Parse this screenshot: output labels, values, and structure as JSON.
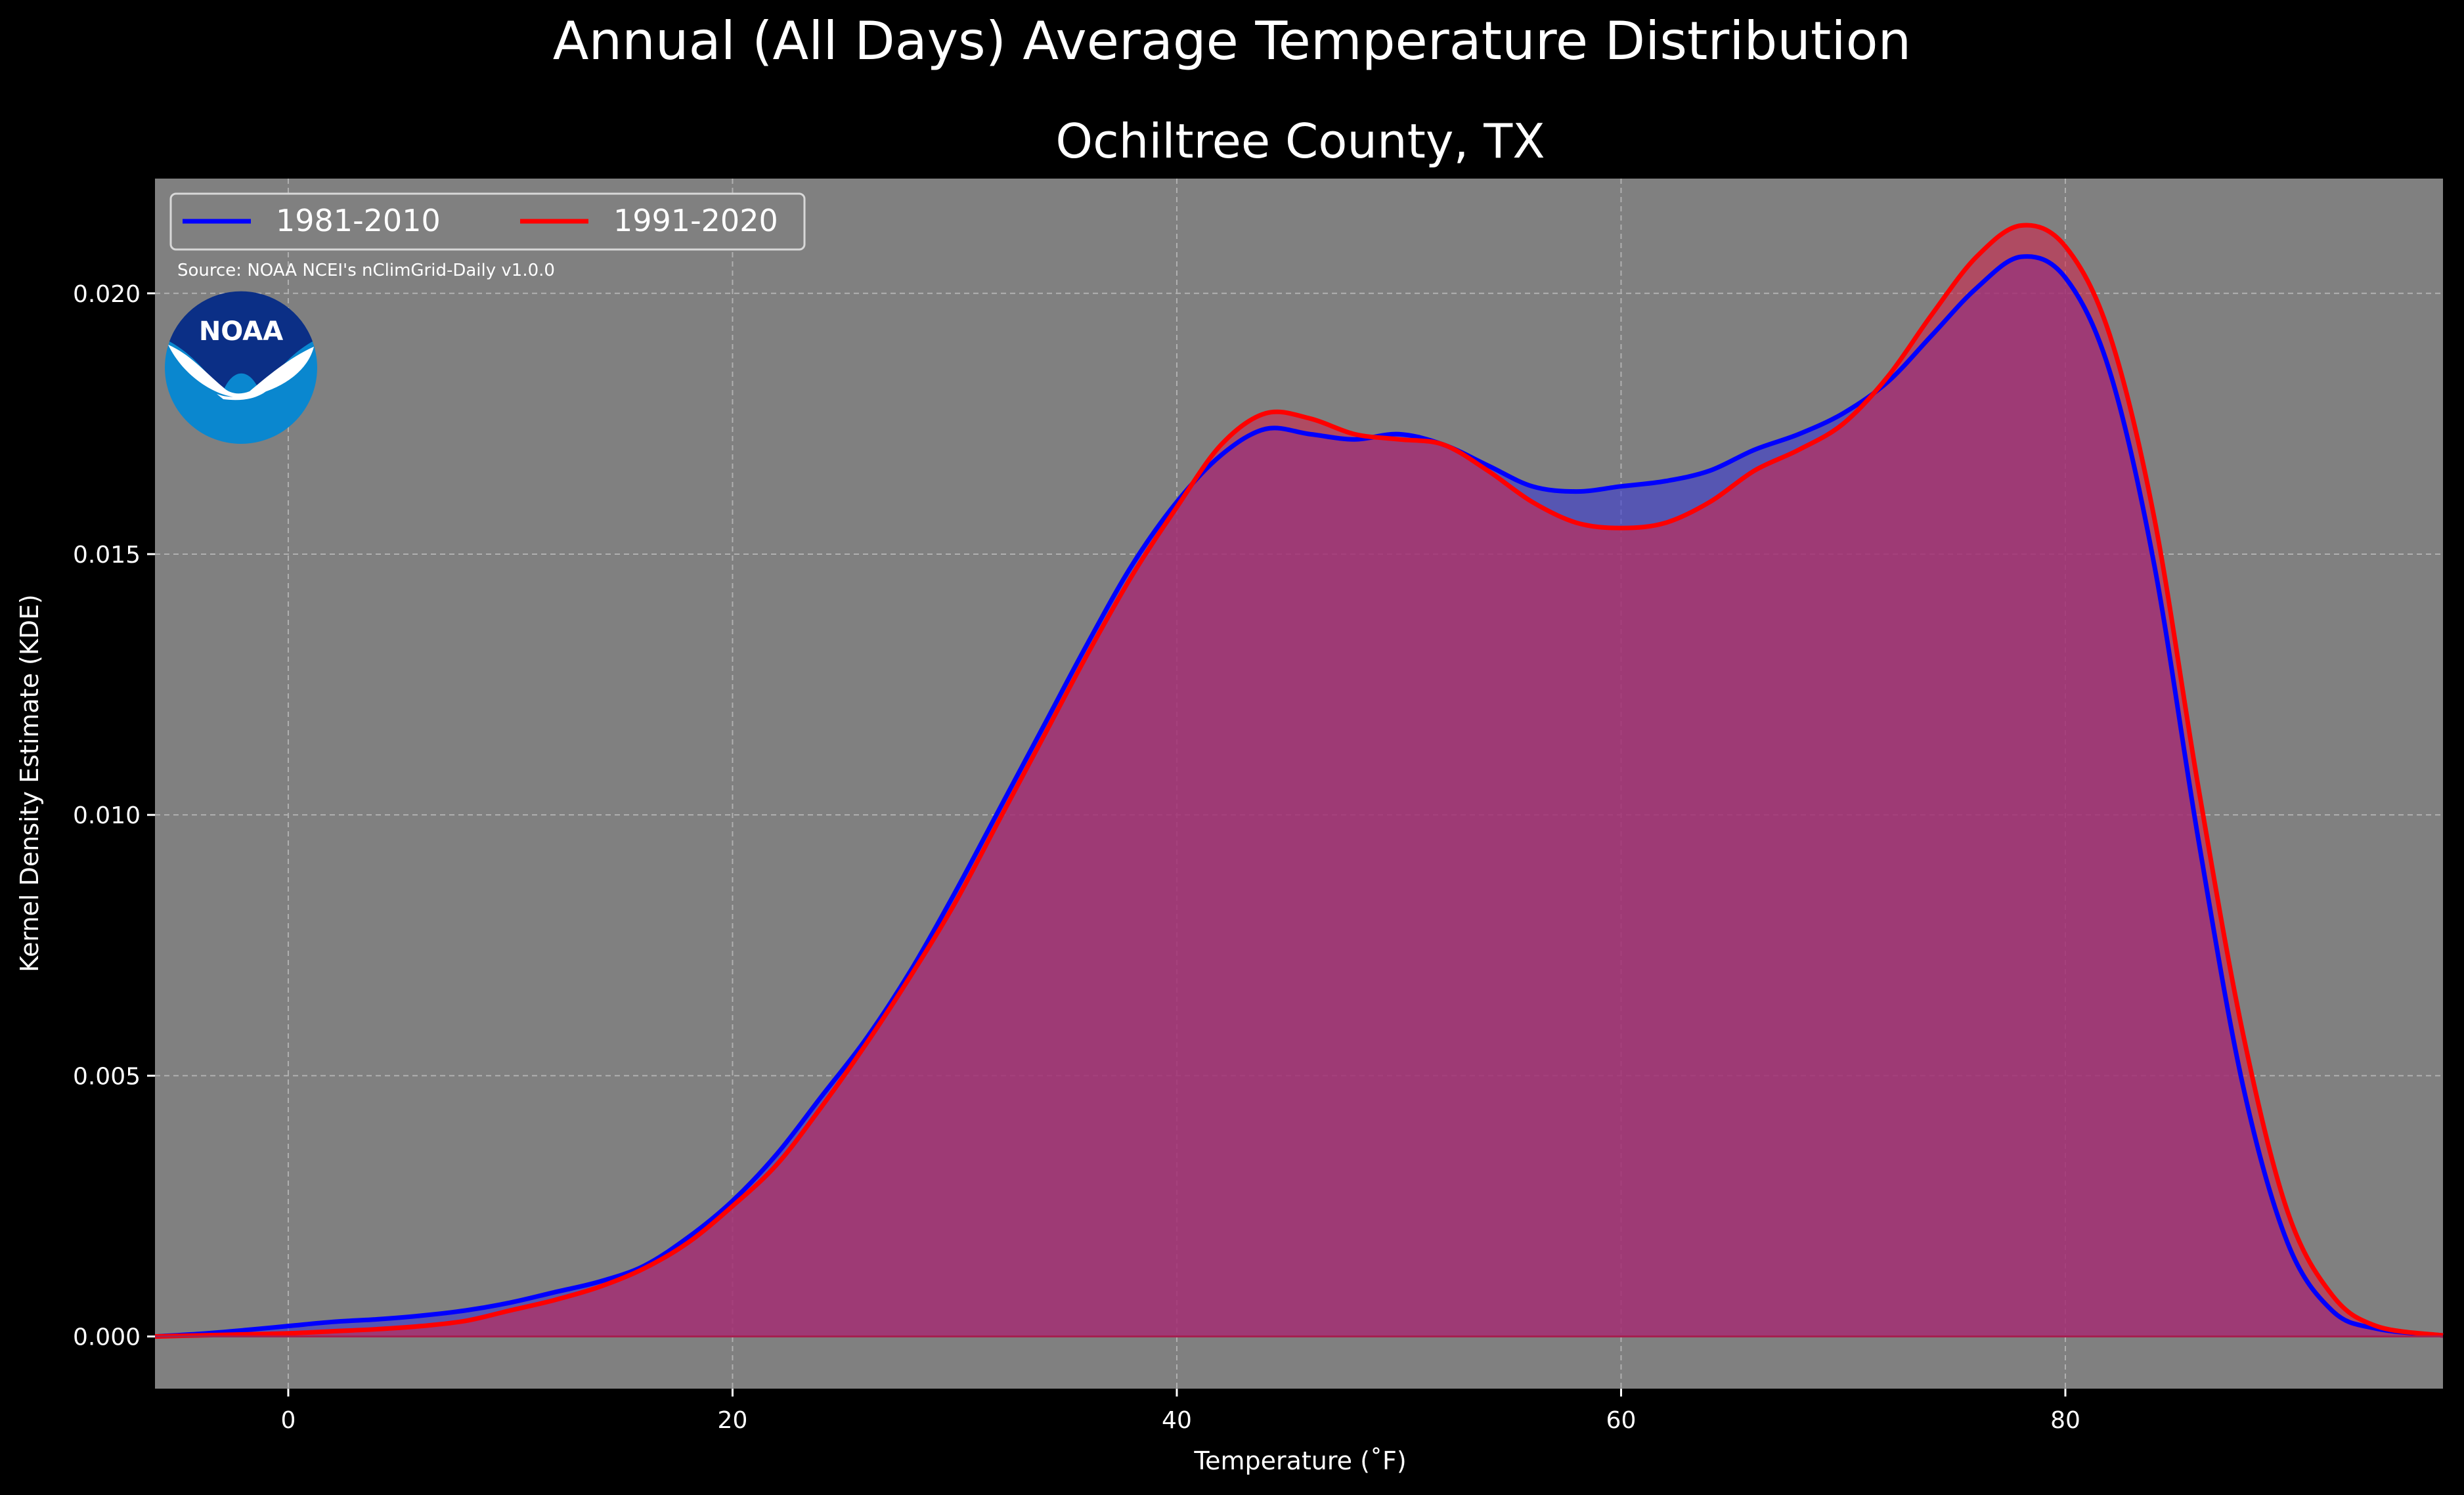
{
  "figure": {
    "suptitle": "Annual (All Days) Average Temperature Distribution",
    "source_note": "Source: NOAA NCEI's nClimGrid-Daily v1.0.0",
    "logo_text": "NOAA",
    "background_color": "#000000",
    "plot_background_color": "#808080"
  },
  "chart_data": {
    "type": "area",
    "title": "Ochiltree County, TX",
    "xlabel": "Temperature (˚F)",
    "ylabel": "Kernel Density Estimate (KDE)",
    "xlim": [
      -6,
      97
    ],
    "ylim": [
      -0.001,
      0.0222
    ],
    "xticks": [
      0,
      20,
      40,
      60,
      80
    ],
    "xtick_labels": [
      "0",
      "20",
      "40",
      "60",
      "80"
    ],
    "yticks": [
      0.0,
      0.005,
      0.01,
      0.015,
      0.02
    ],
    "ytick_labels": [
      "0.000",
      "0.005",
      "0.010",
      "0.015",
      "0.020"
    ],
    "grid": true,
    "legend": {
      "placement": "top-left",
      "ncol": 2
    },
    "series": [
      {
        "name": "1981-2010",
        "color": "#0000ff",
        "fill_color": "#3b3bd0",
        "x": [
          -6,
          -4,
          -2,
          0,
          2,
          4,
          6,
          8,
          10,
          12,
          14,
          16,
          18,
          20,
          22,
          24,
          26,
          28,
          30,
          32,
          34,
          36,
          38,
          40,
          42,
          44,
          46,
          48,
          50,
          52,
          54,
          56,
          58,
          60,
          62,
          64,
          66,
          68,
          70,
          72,
          74,
          76,
          78,
          80,
          82,
          84,
          86,
          88,
          90,
          92,
          94,
          97
        ],
        "y": [
          0.0,
          5e-05,
          0.00012,
          0.0002,
          0.00028,
          0.00033,
          0.0004,
          0.0005,
          0.00065,
          0.00085,
          0.00105,
          0.00135,
          0.0019,
          0.0026,
          0.0035,
          0.0046,
          0.0057,
          0.007,
          0.0085,
          0.0101,
          0.0117,
          0.0133,
          0.0148,
          0.016,
          0.0169,
          0.0174,
          0.0173,
          0.0172,
          0.0173,
          0.0171,
          0.0167,
          0.0163,
          0.0162,
          0.0163,
          0.0164,
          0.0166,
          0.017,
          0.0173,
          0.0177,
          0.0183,
          0.0192,
          0.0201,
          0.0207,
          0.0203,
          0.0185,
          0.0148,
          0.0095,
          0.0048,
          0.0018,
          0.0005,
          0.00015,
          2e-05
        ]
      },
      {
        "name": "1991-2020",
        "color": "#ff0000",
        "fill_color": "#cc2a4f",
        "x": [
          -6,
          -4,
          -2,
          0,
          2,
          4,
          6,
          8,
          10,
          12,
          14,
          16,
          18,
          20,
          22,
          24,
          26,
          28,
          30,
          32,
          34,
          36,
          38,
          40,
          42,
          44,
          46,
          48,
          50,
          52,
          54,
          56,
          58,
          60,
          62,
          64,
          66,
          68,
          70,
          72,
          74,
          76,
          78,
          80,
          82,
          84,
          86,
          88,
          90,
          92,
          94,
          97
        ],
        "y": [
          0.0,
          2e-05,
          4e-05,
          6e-05,
          0.0001,
          0.00014,
          0.0002,
          0.0003,
          0.0005,
          0.0007,
          0.00095,
          0.0013,
          0.0018,
          0.0025,
          0.0033,
          0.0044,
          0.0056,
          0.0069,
          0.0083,
          0.0099,
          0.0115,
          0.0131,
          0.0146,
          0.0159,
          0.0171,
          0.0177,
          0.0176,
          0.0173,
          0.0172,
          0.0171,
          0.0166,
          0.016,
          0.0156,
          0.0155,
          0.0156,
          0.016,
          0.0166,
          0.017,
          0.0175,
          0.0184,
          0.0196,
          0.0207,
          0.0213,
          0.0209,
          0.0192,
          0.0157,
          0.0105,
          0.0058,
          0.0024,
          0.0008,
          0.0002,
          2e-05
        ]
      }
    ]
  }
}
